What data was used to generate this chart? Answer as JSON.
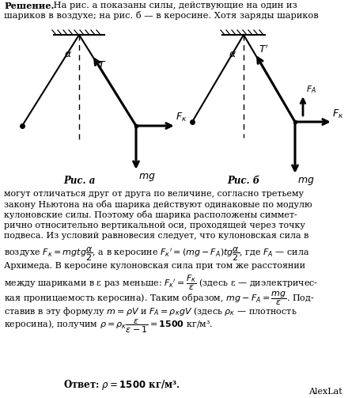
{
  "bg_color": "#ffffff",
  "header_bold": "Решение.",
  "header_rest_1": " На рис. a показаны силы, действующие на один из",
  "header_line2": "шариков в воздухе; на рис. б — в керосине. Хотя заряды шариков",
  "fig_a_label": "Рис. а",
  "fig_b_label": "Рис. б",
  "body": [
    "могут отличаться друг от друга по величине, согласно третьему",
    "закону Ньютона на оба шарика действуют одинаковые по модулю",
    "кулоновские силы. Поэтому оба шарика расположены симмет-",
    "рично относительно вертикальной оси, проходящей через точку",
    "подвеса. Из условий равновесия следует, что кулоновская сила в"
  ],
  "f1a": "воздухе ",
  "f1b": "$F_к = mgtg\\dfrac{\\alpha}{2}$",
  "f1c": ", а в керосине ",
  "f1d": "$F_к{}' = (mg - F_А)tg\\dfrac{\\alpha}{2}$",
  "f1e": ", где ",
  "f1f": "$F_А$",
  "f1g": " — сила",
  "f2": "Архимеда. В керосине кулоновская сила при том же расстоянии",
  "f3a": "между шариками в ε раз меньше: ",
  "f3b": "$F_к{}' = \\dfrac{F_к}{\\varepsilon}$",
  "f3c": " (здесь ε — диэлектричес-",
  "f4a": "кая проницаемость керосина). Таким образом, ",
  "f4b": "$mg - F_А = \\dfrac{mg}{\\varepsilon}$",
  "f4c": ". Под-",
  "f5": "ставив в эту формулу $m = \\rho V$ и $F_А = \\rho_кgV$ (здесь $\\rho_к$ — плотность",
  "f6a": "керосина), получим ",
  "f6b": "$\\rho = \\rho_к\\dfrac{\\varepsilon}{\\varepsilon - 1} = \\mathbf{1500}$",
  "f6c": " кг/м³.",
  "answer_pre": "Ответ: ",
  "answer_math": "$\\rho = \\mathbf{1500}$",
  "answer_post": " кг/м³.",
  "author": "AlexLat"
}
